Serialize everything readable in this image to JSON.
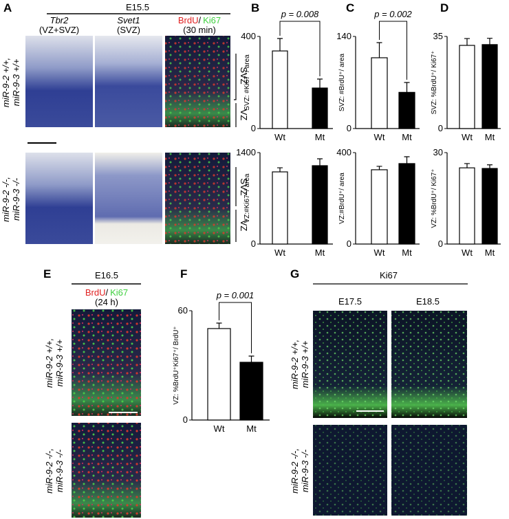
{
  "panel_letters": [
    "A",
    "B",
    "C",
    "D",
    "E",
    "F",
    "G"
  ],
  "panel_a": {
    "stage": "E15.5",
    "columns": [
      {
        "name": "Tbr2",
        "sub": "(VZ+SVZ)"
      },
      {
        "name": "Svet1",
        "sub": "(SVZ)"
      }
    ],
    "stain": {
      "first": "BrdU",
      "sep": "/",
      "second": "Ki67",
      "sub": "(30 min)"
    },
    "rows": [
      [
        "miR-9-2 +/+,",
        "miR-9-3 +/+"
      ],
      [
        "miR-9-2 -/-,",
        "miR-9-3 -/-"
      ]
    ],
    "zones": [
      "SVZ",
      "VZ"
    ]
  },
  "panel_e": {
    "stage": "E16.5",
    "stain": {
      "first": "BrdU",
      "sep": "/",
      "second": "Ki67",
      "sub": "(24 h)"
    },
    "rows": [
      [
        "miR-9-2 +/+,",
        "miR-9-3 +/+"
      ],
      [
        "miR-9-2 -/-,",
        "miR-9-3 -/-"
      ]
    ]
  },
  "panel_g": {
    "stain": "Ki67",
    "stages": [
      "E17.5",
      "E18.5"
    ],
    "rows": [
      [
        "miR-9-2 +/+,",
        "miR-9-3 +/+"
      ],
      [
        "miR-9-2 -/-,",
        "miR-9-3 -/-"
      ]
    ]
  },
  "chart_data": [
    {
      "type": "bar",
      "ylabel": "SVZ: #Ki67⁺/ area",
      "categories": [
        "Wt",
        "Mt"
      ],
      "values": [
        337,
        176
      ],
      "errors": [
        54,
        39
      ],
      "colors": [
        "#ffffff",
        "#000000"
      ],
      "ylim": [
        0,
        400
      ],
      "yticks": [
        0,
        400
      ],
      "annotation": "p = 0.008"
    },
    {
      "type": "bar",
      "ylabel": "VZ:#Ki67⁺/ area",
      "categories": [
        "Wt",
        "Mt"
      ],
      "values": [
        1105,
        1200
      ],
      "errors": [
        63,
        105
      ],
      "colors": [
        "#ffffff",
        "#000000"
      ],
      "ylim": [
        0,
        1400
      ],
      "yticks": [
        0,
        1400
      ]
    },
    {
      "type": "bar",
      "ylabel": "SVZ: #BrdU⁺/ area",
      "categories": [
        "Wt",
        "Mt"
      ],
      "values": [
        107.6,
        55
      ],
      "errors": [
        23,
        15
      ],
      "colors": [
        "#ffffff",
        "#000000"
      ],
      "ylim": [
        0,
        140
      ],
      "yticks": [
        0,
        140
      ],
      "annotation": "p = 0.002"
    },
    {
      "type": "bar",
      "ylabel": "VZ:#BrdU⁺/ area",
      "categories": [
        "Wt",
        "Mt"
      ],
      "values": [
        325,
        352
      ],
      "errors": [
        15,
        30
      ],
      "colors": [
        "#ffffff",
        "#000000"
      ],
      "ylim": [
        0,
        400
      ],
      "yticks": [
        0,
        400
      ]
    },
    {
      "type": "bar",
      "ylabel": "SVZ: %BrdU⁺/ Ki67⁺",
      "categories": [
        "Wt",
        "Mt"
      ],
      "values": [
        31.6,
        31.9
      ],
      "errors": [
        2.6,
        2.4
      ],
      "colors": [
        "#ffffff",
        "#000000"
      ],
      "ylim": [
        0,
        35
      ],
      "yticks": [
        0,
        35
      ]
    },
    {
      "type": "bar",
      "ylabel": "VZ: %BrdU⁺/ Ki67⁺",
      "categories": [
        "Wt",
        "Mt"
      ],
      "values": [
        25.0,
        24.8
      ],
      "errors": [
        1.4,
        1.2
      ],
      "colors": [
        "#ffffff",
        "#000000"
      ],
      "ylim": [
        0,
        30
      ],
      "yticks": [
        0,
        30
      ]
    },
    {
      "type": "bar",
      "ylabel": "VZ: %BrdU⁺Ki67⁺/ BrdU⁺",
      "categories": [
        "Wt",
        "Mt"
      ],
      "values": [
        50.2,
        31.7
      ],
      "errors": [
        3,
        3.4
      ],
      "colors": [
        "#ffffff",
        "#000000"
      ],
      "ylim": [
        0,
        60
      ],
      "yticks": [
        0,
        60
      ],
      "annotation": "p = 0.001"
    }
  ]
}
